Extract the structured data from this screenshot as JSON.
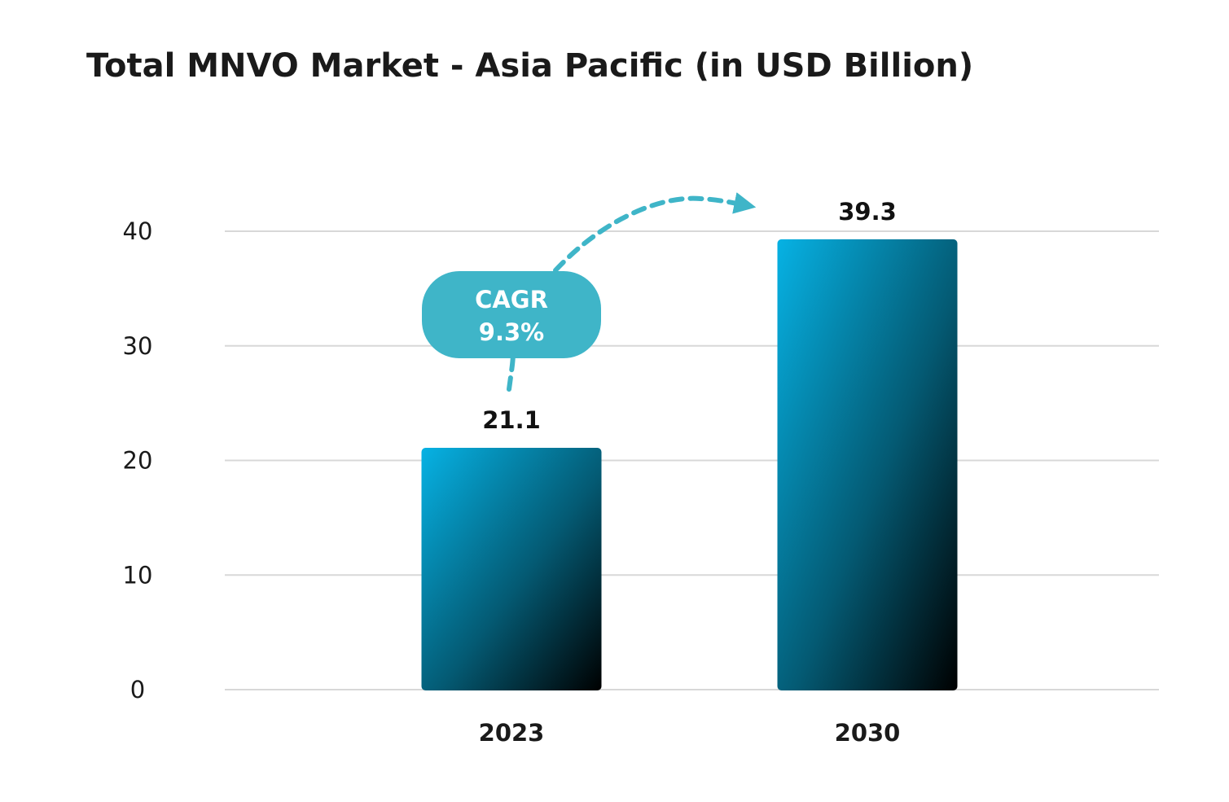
{
  "chart_data": {
    "type": "bar",
    "title": "Total MNVO Market - Asia Pacific (in USD Billion)",
    "categories": [
      "2023",
      "2030"
    ],
    "values": [
      21.1,
      39.3
    ],
    "data_labels": [
      "21.1",
      "39.3"
    ],
    "ylim": [
      0,
      40
    ],
    "yticks": [
      0,
      10,
      20,
      30,
      40
    ],
    "grid": true,
    "xlabel": "",
    "ylabel": "",
    "annotation": {
      "line1": "CAGR",
      "line2": "9.3%"
    },
    "colors": {
      "bar_top": "#06b2e4",
      "bar_bottom": "#000000",
      "badge": "#3fb5c8",
      "arrow": "#3fb5c8",
      "grid": "#d8d8d8"
    }
  }
}
